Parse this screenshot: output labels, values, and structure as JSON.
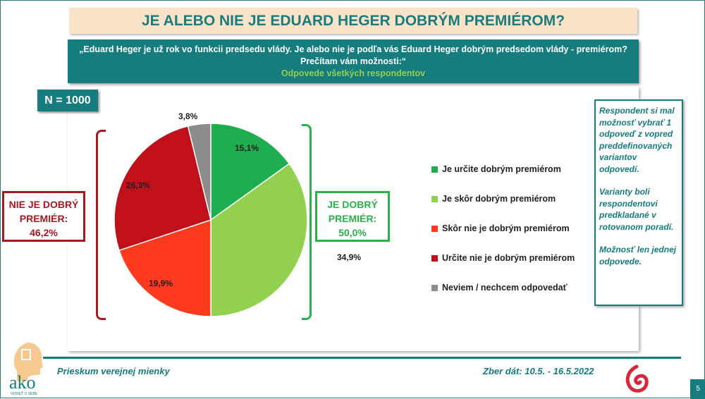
{
  "title": "JE ALEBO NIE JE EDUARD HEGER DOBRÝM PREMIÉROM?",
  "question": {
    "line1": "„Eduard Heger je už rok vo funkcii predsedu vlády. Je alebo nie je podľa vás Eduard Heger dobrým predsedom vlády - premiérom?",
    "line2": "Prečítam vám možnosti:“",
    "sub": "Odpovede všetkých respondentov"
  },
  "n_label": "N = 1000",
  "summary": {
    "negative_line1": "NIE JE DOBRÝ",
    "negative_line2": "PREMIÉR:",
    "negative_value": "46,2%",
    "positive_line1": "JE DOBRÝ",
    "positive_line2": "PREMIÉR:",
    "positive_value": "50,0%"
  },
  "chart_data": {
    "type": "pie",
    "start": "top",
    "direction": "clockwise",
    "categories": [
      "Je určite dobrým premiérom",
      "Je skôr dobrým premiérom",
      "Skôr nie je dobrým premiérom",
      "Určite nie je dobrým premiérom",
      "Neviem / nechcem odpovedať"
    ],
    "values": [
      15.1,
      34.9,
      19.9,
      26.3,
      3.8
    ],
    "labels": [
      "15,1%",
      "34,9%",
      "19,9%",
      "26,3%",
      "3,8%"
    ],
    "colors": [
      "#1fae4f",
      "#92d050",
      "#ff3b1f",
      "#c0101a",
      "#8c8c8c"
    ],
    "legend": "right"
  },
  "note": [
    "Respondent si mal možnosť vybrať 1 odpoveď z vopred preddefinovaných variantov odpovedí.",
    "Varianty boli respondentovi predkladané v rotovanom poradí.",
    "Možnosť len jednej odpovede."
  ],
  "footer": {
    "left": "Prieskum verejnej mienky",
    "right": "Zber dát: 10.5. - 16.5.2022",
    "page": "5",
    "logo_text": "ako",
    "logo_tagline": "VEDIEŤ O SEBE"
  }
}
